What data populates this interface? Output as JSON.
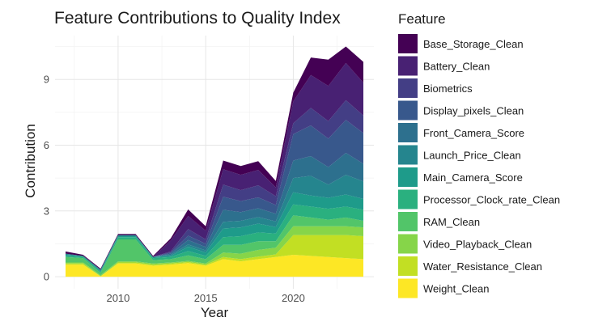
{
  "chart_data": {
    "type": "area",
    "title": "Feature Contributions to Quality Index",
    "xlabel": "Year",
    "ylabel": "Contribution",
    "legend_title": "Feature",
    "legend_position": "right",
    "grid": true,
    "xlim": [
      2006.4,
      2024.6
    ],
    "ylim": [
      -0.55,
      11.0
    ],
    "x_ticks": [
      2010,
      2015,
      2020
    ],
    "y_ticks": [
      0,
      3,
      6,
      9
    ],
    "x": [
      2007,
      2008,
      2009,
      2010,
      2011,
      2012,
      2013,
      2014,
      2015,
      2016,
      2017,
      2018,
      2019,
      2020,
      2021,
      2022,
      2023,
      2024
    ],
    "series": [
      {
        "name": "Weight_Clean",
        "color": "#FDE725",
        "values": [
          0.55,
          0.55,
          0.02,
          0.6,
          0.6,
          0.5,
          0.55,
          0.62,
          0.5,
          0.8,
          0.7,
          0.8,
          0.9,
          1.0,
          0.95,
          0.9,
          0.85,
          0.8
        ]
      },
      {
        "name": "Water_Resistance_Clean",
        "color": "#C2DF23",
        "values": [
          0.05,
          0.05,
          0.0,
          0.05,
          0.05,
          0.05,
          0.05,
          0.05,
          0.05,
          0.1,
          0.1,
          0.12,
          0.12,
          0.9,
          0.95,
          1.0,
          1.05,
          1.05
        ]
      },
      {
        "name": "Video_Playback_Clean",
        "color": "#86D549",
        "values": [
          0.05,
          0.05,
          0.05,
          0.05,
          0.05,
          0.05,
          0.05,
          0.05,
          0.05,
          0.2,
          0.25,
          0.3,
          0.3,
          0.4,
          0.4,
          0.4,
          0.4,
          0.4
        ]
      },
      {
        "name": "RAM_Clean",
        "color": "#52C569",
        "values": [
          0.25,
          0.2,
          0.1,
          1.0,
          1.0,
          0.15,
          0.15,
          0.25,
          0.2,
          0.35,
          0.4,
          0.4,
          0.3,
          0.5,
          0.4,
          0.3,
          0.4,
          0.3
        ]
      },
      {
        "name": "Processor_Clock_rate_Clean",
        "color": "#2AB07F",
        "values": [
          0.05,
          0.05,
          0.05,
          0.1,
          0.1,
          0.1,
          0.1,
          0.2,
          0.15,
          0.35,
          0.4,
          0.4,
          0.35,
          0.5,
          0.5,
          0.5,
          0.5,
          0.5
        ]
      },
      {
        "name": "Main_Camera_Score",
        "color": "#1E9B8A",
        "values": [
          0.05,
          0.05,
          0.05,
          0.05,
          0.05,
          0.05,
          0.05,
          0.2,
          0.15,
          0.4,
          0.4,
          0.4,
          0.3,
          0.55,
          0.5,
          0.5,
          0.55,
          0.5
        ]
      },
      {
        "name": "Launch_Price_Clean",
        "color": "#25858E",
        "values": [
          0.05,
          0.0,
          0.05,
          0.05,
          0.05,
          0.0,
          0.05,
          0.1,
          0.1,
          0.3,
          0.3,
          0.3,
          0.25,
          0.65,
          0.9,
          0.6,
          0.9,
          0.8
        ]
      },
      {
        "name": "Front_Camera_Score",
        "color": "#2D708E",
        "values": [
          0.0,
          0.0,
          0.0,
          0.0,
          0.0,
          0.0,
          0.05,
          0.2,
          0.15,
          0.55,
          0.4,
          0.4,
          0.35,
          0.8,
          0.9,
          0.8,
          1.0,
          0.8
        ]
      },
      {
        "name": "Display_pixels_Clean",
        "color": "#38588C",
        "values": [
          0.0,
          0.0,
          0.0,
          0.0,
          0.0,
          0.0,
          0.05,
          0.2,
          0.15,
          0.6,
          0.5,
          0.5,
          0.4,
          1.2,
          1.4,
          1.3,
          1.5,
          1.4
        ]
      },
      {
        "name": "Biometrics",
        "color": "#433E85",
        "values": [
          0.0,
          0.0,
          0.0,
          0.0,
          0.0,
          0.0,
          0.05,
          0.3,
          0.2,
          0.55,
          0.5,
          0.55,
          0.4,
          0.5,
          0.8,
          0.8,
          0.9,
          0.8
        ]
      },
      {
        "name": "Battery_Clean",
        "color": "#482173",
        "values": [
          0.0,
          0.0,
          0.0,
          0.0,
          0.0,
          0.0,
          0.5,
          0.6,
          0.4,
          0.7,
          0.7,
          0.7,
          0.4,
          1.0,
          1.5,
          1.6,
          1.7,
          1.5
        ]
      },
      {
        "name": "Base_Storage_Clean",
        "color": "#440154",
        "values": [
          0.1,
          0.05,
          0.05,
          0.05,
          0.05,
          0.05,
          0.1,
          0.3,
          0.2,
          0.4,
          0.4,
          0.4,
          0.3,
          0.4,
          0.8,
          1.2,
          0.75,
          0.95
        ]
      }
    ]
  }
}
